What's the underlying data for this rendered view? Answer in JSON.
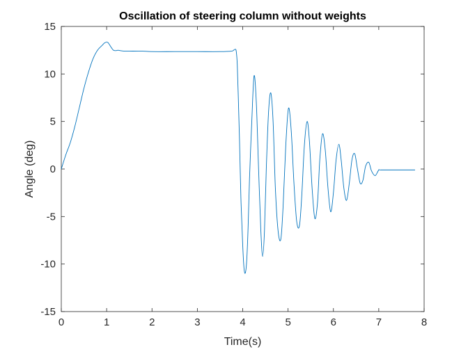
{
  "chart_data": {
    "type": "line",
    "title": "Oscillation of steering column without weights",
    "xlabel": "Time(s)",
    "ylabel": "Angle (deg)",
    "xlim": [
      0,
      8
    ],
    "ylim": [
      -15,
      15
    ],
    "xticks": [
      0,
      1,
      2,
      3,
      4,
      5,
      6,
      7,
      8
    ],
    "yticks": [
      -15,
      -10,
      -5,
      0,
      5,
      10,
      15
    ],
    "xtick_labels": [
      "0",
      "1",
      "2",
      "3",
      "4",
      "5",
      "6",
      "7",
      "8"
    ],
    "ytick_labels": [
      "-15",
      "-10",
      "-5",
      "0",
      "5",
      "10",
      "15"
    ],
    "grid": false,
    "line_color": "#0072BD",
    "series": [
      {
        "x": [
          0,
          0.1,
          0.2,
          0.3,
          0.4,
          0.5,
          0.6,
          0.7,
          0.8,
          0.9,
          0.95,
          1.0,
          1.03,
          1.06,
          1.1,
          1.15,
          1.2,
          1.25,
          1.3,
          1.4,
          1.5,
          1.8,
          2.0,
          2.5,
          3.0,
          3.5,
          3.75,
          3.8,
          3.84,
          3.86,
          3.88,
          3.9,
          3.93,
          3.96,
          4.0,
          4.03,
          4.06,
          4.09,
          4.12,
          4.15,
          4.2,
          4.25,
          4.3,
          4.35,
          4.4,
          4.44,
          4.48,
          4.52,
          4.57,
          4.62,
          4.67,
          4.72,
          4.78,
          4.84,
          4.89,
          4.95,
          5.01,
          5.07,
          5.13,
          5.19,
          5.25,
          5.3,
          5.36,
          5.42,
          5.47,
          5.53,
          5.59,
          5.65,
          5.7,
          5.76,
          5.82,
          5.88,
          5.94,
          6.0,
          6.06,
          6.12,
          6.17,
          6.23,
          6.29,
          6.35,
          6.41,
          6.47,
          6.53,
          6.59,
          6.65,
          6.71,
          6.78,
          6.84,
          6.92,
          7.0,
          7.05,
          7.5,
          7.8
        ],
        "y": [
          0,
          1.5,
          2.8,
          4.5,
          6.5,
          8.5,
          10.2,
          11.6,
          12.5,
          13.0,
          13.25,
          13.35,
          13.3,
          13.1,
          12.8,
          12.5,
          12.45,
          12.5,
          12.45,
          12.4,
          12.4,
          12.4,
          12.35,
          12.35,
          12.35,
          12.35,
          12.4,
          12.5,
          12.6,
          12.3,
          11.0,
          8.0,
          3.0,
          -3.0,
          -8.0,
          -10.5,
          -10.9,
          -9.5,
          -6.0,
          -1.0,
          5.0,
          9.8,
          7.0,
          0.0,
          -6.5,
          -9.2,
          -6.5,
          0.0,
          6.0,
          8.0,
          5.0,
          -2.0,
          -6.5,
          -7.4,
          -4.0,
          2.5,
          6.4,
          4.0,
          -1.5,
          -5.5,
          -6.0,
          -3.0,
          2.5,
          5.0,
          3.0,
          -2.0,
          -5.2,
          -3.5,
          1.0,
          3.7,
          2.0,
          -2.0,
          -4.5,
          -2.5,
          1.0,
          2.6,
          1.0,
          -2.0,
          -3.3,
          -1.5,
          1.0,
          1.6,
          0.0,
          -1.5,
          -1.2,
          0.3,
          0.7,
          -0.2,
          -0.7,
          -0.1,
          -0.1,
          -0.1,
          -0.1
        ]
      }
    ]
  }
}
